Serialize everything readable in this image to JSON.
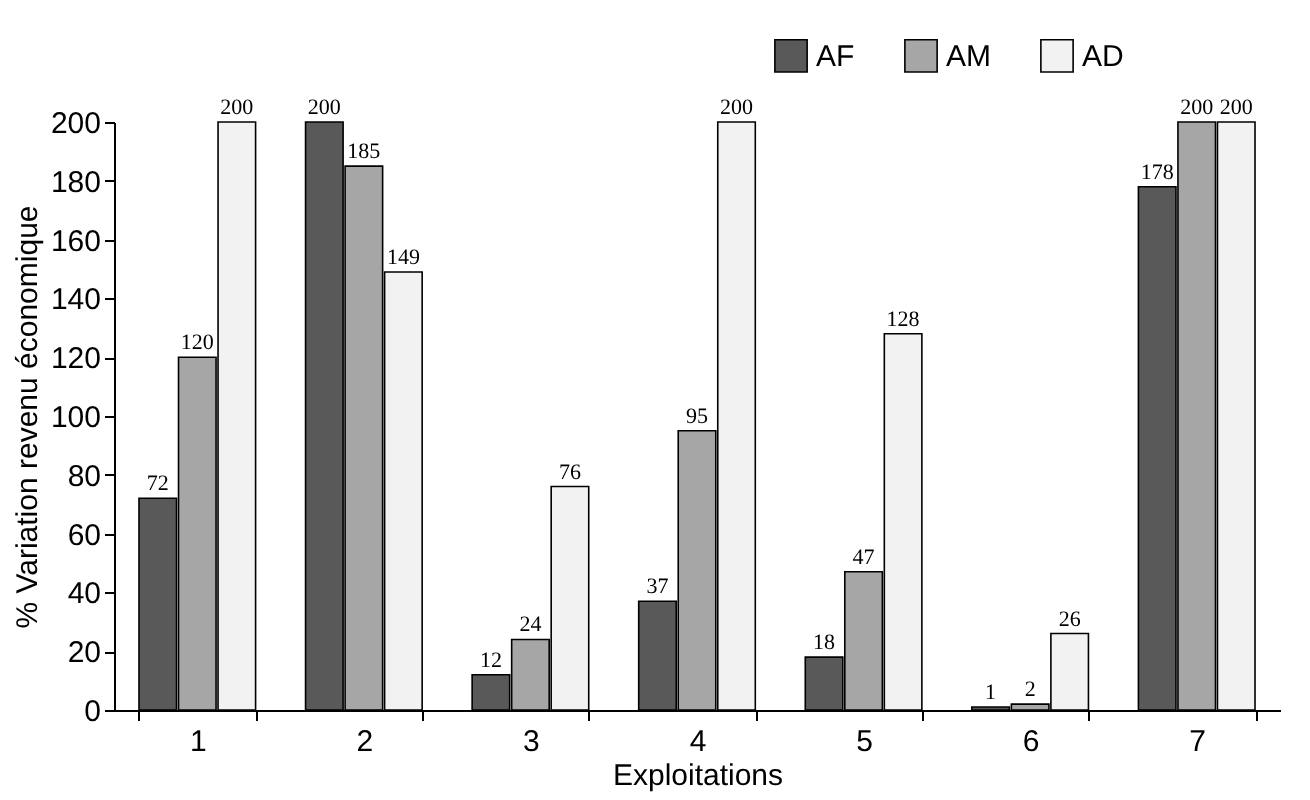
{
  "chart_data": {
    "type": "bar",
    "xlabel": "Exploitations",
    "ylabel": "% Variation revenu économique",
    "categories": [
      "1",
      "2",
      "3",
      "4",
      "5",
      "6",
      "7"
    ],
    "series": [
      {
        "name": "AF",
        "color": "#595959",
        "values": [
          72,
          200,
          12,
          37,
          18,
          1,
          178
        ]
      },
      {
        "name": "AM",
        "color": "#a6a6a6",
        "values": [
          120,
          185,
          24,
          95,
          47,
          2,
          200
        ]
      },
      {
        "name": "AD",
        "color": "#f2f2f2",
        "values": [
          200,
          149,
          76,
          200,
          128,
          26,
          200
        ]
      }
    ],
    "ylim": [
      0,
      200
    ],
    "yticks": [
      0,
      20,
      40,
      60,
      80,
      100,
      120,
      140,
      160,
      180,
      200
    ],
    "data_labels": true,
    "legend": "top right",
    "grid": false
  }
}
